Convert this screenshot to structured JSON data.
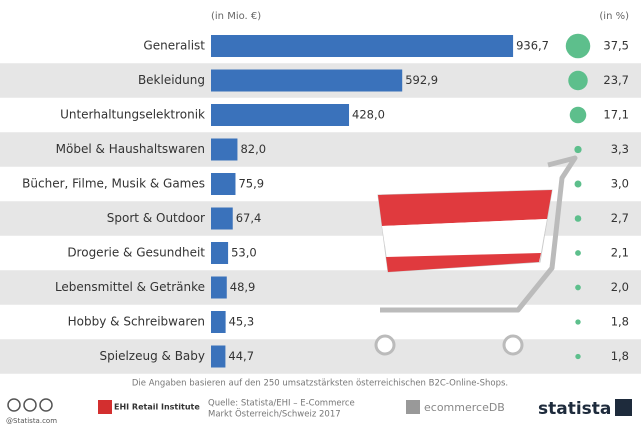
{
  "chart_data": {
    "type": "bar",
    "categories": [
      "Generalist",
      "Bekleidung",
      "Unterhaltungselektronik",
      "Möbel & Haushaltswaren",
      "Bücher, Filme, Musik & Games",
      "Sport & Outdoor",
      "Drogerie & Gesundheit",
      "Lebensmittel & Getränke",
      "Hobby & Schreibwaren",
      "Spielzeug & Baby"
    ],
    "series": [
      {
        "name": "(in Mio. €)",
        "type": "bar",
        "color": "#3a72bb",
        "values": [
          936.7,
          592.9,
          428.0,
          82.0,
          75.9,
          67.4,
          53.0,
          48.9,
          45.3,
          44.7
        ],
        "value_labels": [
          "936,7",
          "592,9",
          "428,0",
          "82,0",
          "75,9",
          "67,4",
          "53,0",
          "48,9",
          "45,3",
          "44,7"
        ]
      },
      {
        "name": "(in %)",
        "type": "bubble",
        "color": "#5dbf8c",
        "values": [
          37.5,
          23.7,
          17.1,
          3.3,
          3.0,
          2.7,
          2.1,
          2.0,
          1.8,
          1.8
        ],
        "value_labels": [
          "37,5",
          "23,7",
          "17,1",
          "3,3",
          "3,0",
          "2,7",
          "2,1",
          "2,0",
          "1,8",
          "1,8"
        ]
      }
    ]
  },
  "footer": {
    "note": "Die Angaben basieren auf den 250 umsatzstärksten österreichischen B2C-Online-Shops.",
    "credit": "@Statista.com",
    "partner": "EHI Retail Institute",
    "source": [
      "Quelle: Statista/EHI – E-Commerce",
      "Markt Österreich/Schweiz 2017"
    ],
    "database": "ecommerceDB",
    "brand": "statista"
  }
}
